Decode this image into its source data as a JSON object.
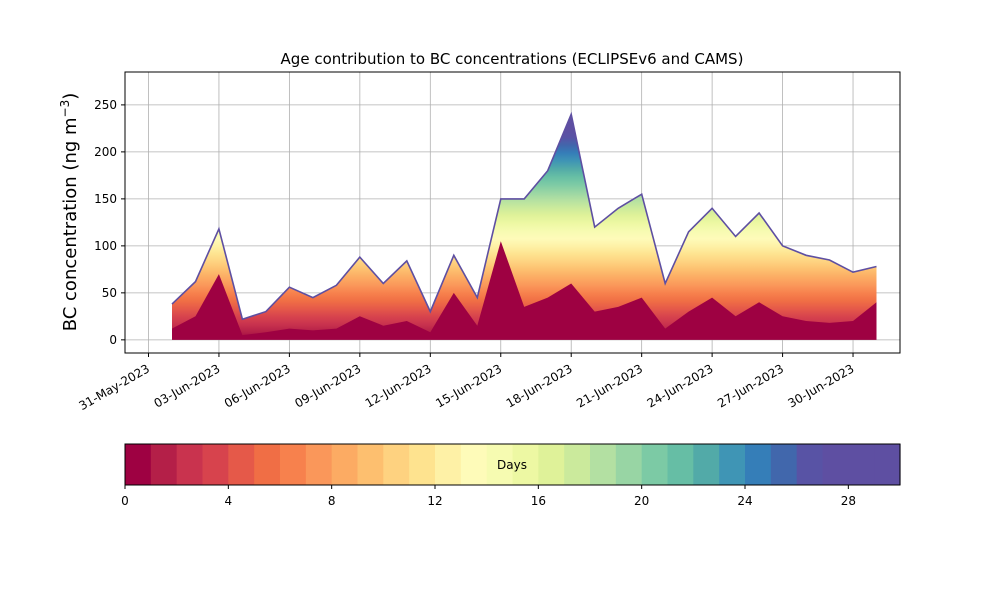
{
  "chart_data": {
    "type": "area",
    "title": "Age contribution to BC concentrations (ECLIPSEv6 and CAMS)",
    "ylabel_main": "BC concentration (ng m",
    "ylabel_exp": "−3",
    "ylabel_close": ")",
    "xlabel": "",
    "grid": true,
    "x_start": "2023-06-01",
    "x_end": "2023-07-01",
    "xlim": [
      "2023-05-30",
      "2023-07-02"
    ],
    "ylim": [
      -14,
      285
    ],
    "yticks": [
      0,
      50,
      100,
      150,
      200,
      250
    ],
    "xtick_labels": [
      "31-May-2023",
      "03-Jun-2023",
      "06-Jun-2023",
      "09-Jun-2023",
      "12-Jun-2023",
      "15-Jun-2023",
      "18-Jun-2023",
      "21-Jun-2023",
      "24-Jun-2023",
      "27-Jun-2023",
      "30-Jun-2023"
    ],
    "xtick_dates": [
      "2023-05-31",
      "2023-06-03",
      "2023-06-06",
      "2023-06-09",
      "2023-06-12",
      "2023-06-15",
      "2023-06-18",
      "2023-06-21",
      "2023-06-24",
      "2023-06-27",
      "2023-06-30"
    ],
    "dates": [
      "2023-06-01",
      "2023-06-02",
      "2023-06-03",
      "2023-06-04",
      "2023-06-05",
      "2023-06-06",
      "2023-06-07",
      "2023-06-08",
      "2023-06-09",
      "2023-06-10",
      "2023-06-11",
      "2023-06-12",
      "2023-06-13",
      "2023-06-14",
      "2023-06-15",
      "2023-06-16",
      "2023-06-17",
      "2023-06-18",
      "2023-06-19",
      "2023-06-20",
      "2023-06-21",
      "2023-06-22",
      "2023-06-23",
      "2023-06-24",
      "2023-06-25",
      "2023-06-26",
      "2023-06-27",
      "2023-06-28",
      "2023-06-29",
      "2023-06-30",
      "2023-07-01"
    ],
    "total": [
      38,
      62,
      118,
      22,
      30,
      56,
      45,
      58,
      88,
      60,
      84,
      30,
      90,
      45,
      150,
      150,
      180,
      240,
      120,
      140,
      155,
      60,
      115,
      140,
      110,
      135,
      100,
      90,
      85,
      72,
      78
    ],
    "fresh": [
      12,
      25,
      70,
      5,
      8,
      12,
      10,
      12,
      25,
      15,
      20,
      8,
      50,
      15,
      105,
      35,
      45,
      60,
      30,
      35,
      45,
      12,
      30,
      45,
      25,
      40,
      25,
      20,
      18,
      20,
      40
    ],
    "colorbar": {
      "label": "Days",
      "min": 0,
      "max": 30,
      "ticks": [
        0,
        4,
        8,
        12,
        16,
        20,
        24,
        28
      ],
      "colors": [
        "#9e0142",
        "#b41f48",
        "#c9334e",
        "#d7434d",
        "#e55949",
        "#f06e45",
        "#f7814d",
        "#fa975a",
        "#fcab63",
        "#fdbf6f",
        "#fed280",
        "#fee38f",
        "#fef1a6",
        "#fefbb9",
        "#f6fbb1",
        "#edf8a3",
        "#dff299",
        "#cbea9c",
        "#b3e0a2",
        "#98d5a4",
        "#7ccaa5",
        "#66bea5",
        "#52aaa8",
        "#3f95b5",
        "#357eb8",
        "#4167ac",
        "#5853a5",
        "#5e4fa2",
        "#5e4fa2",
        "#5e4fa2"
      ]
    }
  }
}
